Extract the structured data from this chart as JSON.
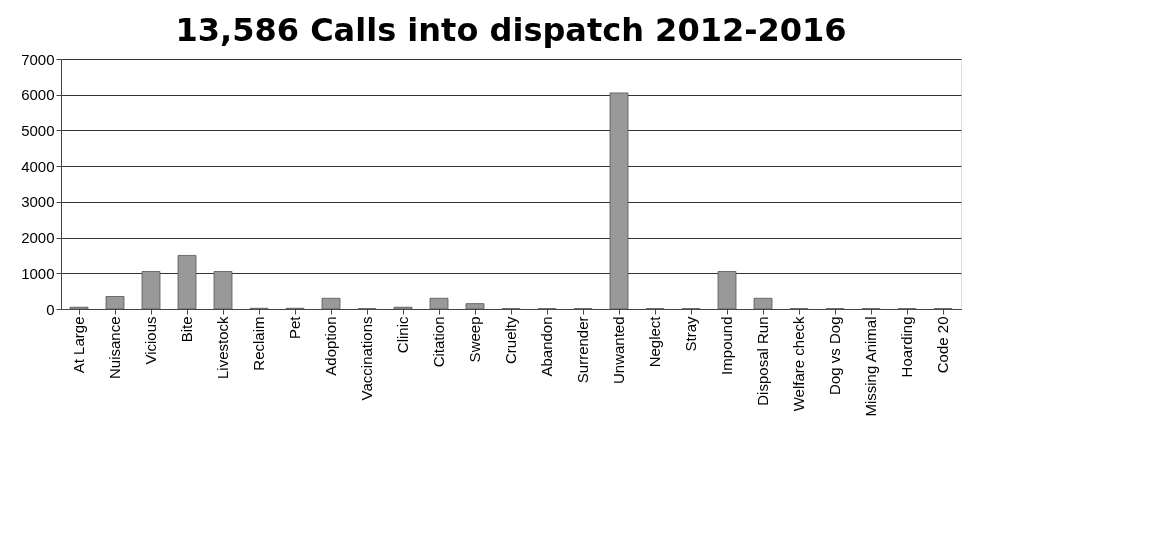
{
  "chart_data": {
    "type": "bar",
    "title": "13,586 Calls into dispatch 2012-2016",
    "categories": [
      "At Large",
      "Nuisance",
      "Vicious",
      "Bite",
      "Livestock",
      "Reclaim",
      "Pet",
      "Adoption",
      "Vaccinations",
      "Clinic",
      "Citation",
      "Sweep",
      "Cruelty",
      "Abandon",
      "Surrender",
      "Unwanted",
      "Neglect",
      "Stray",
      "Impound",
      "Disposal Run",
      "Welfare check",
      "Dog vs Dog",
      "Missing Animal",
      "Hoarding",
      "Code 20"
    ],
    "values": [
      50,
      350,
      1050,
      1500,
      1050,
      20,
      20,
      300,
      10,
      50,
      300,
      150,
      10,
      10,
      10,
      6050,
      10,
      10,
      1050,
      300,
      10,
      10,
      10,
      10,
      10
    ],
    "color": "#999999",
    "ylim": [
      0,
      7000
    ],
    "yticks": [
      0,
      1000,
      2000,
      3000,
      4000,
      5000,
      6000,
      7000
    ],
    "grid": "y"
  }
}
